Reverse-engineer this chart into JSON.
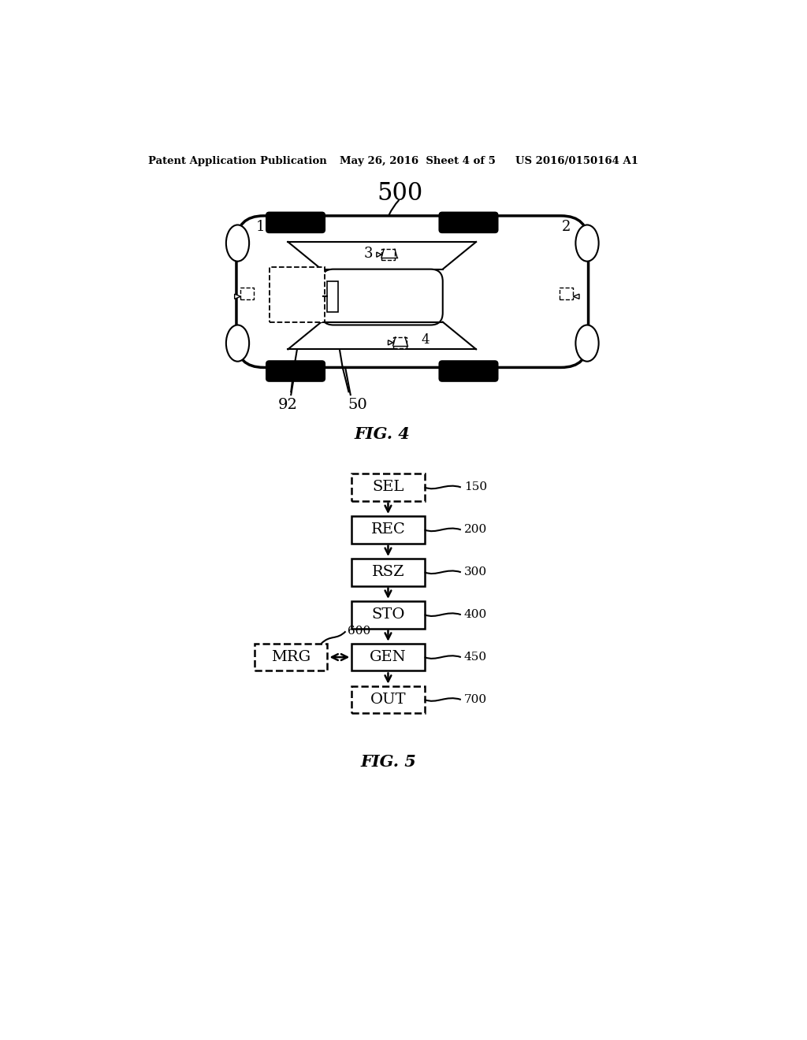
{
  "header_left": "Patent Application Publication",
  "header_mid": "May 26, 2016  Sheet 4 of 5",
  "header_right": "US 2016/0150164 A1",
  "fig4_label": "FIG. 4",
  "fig5_label": "FIG. 5",
  "background_color": "#ffffff"
}
